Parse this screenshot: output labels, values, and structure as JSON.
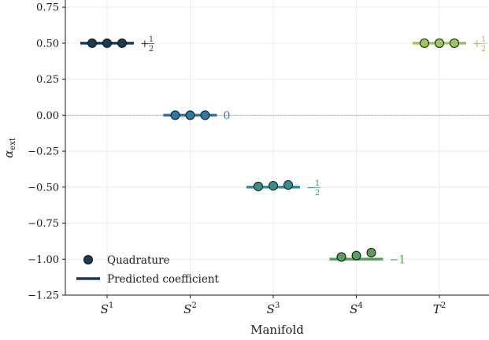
{
  "chart_data": {
    "type": "scatter",
    "xlabel": "Manifold",
    "ylabel": "α",
    "ylabel_sub": "ext",
    "ylim": [
      -1.25,
      0.8
    ],
    "yticks": [
      0.75,
      0.5,
      0.25,
      0.0,
      -0.25,
      -0.5,
      -0.75,
      -1.0,
      -1.25
    ],
    "ytick_labels": [
      "0.75",
      "0.50",
      "0.25",
      "0.00",
      "−0.25",
      "−0.50",
      "−0.75",
      "−1.00",
      "−1.25"
    ],
    "grid": true,
    "reference_line_y": 0.0,
    "categories": [
      {
        "base": "S",
        "sup": "1"
      },
      {
        "base": "S",
        "sup": "2"
      },
      {
        "base": "S",
        "sup": "3"
      },
      {
        "base": "S",
        "sup": "4"
      },
      {
        "base": "T",
        "sup": "2"
      }
    ],
    "series": [
      {
        "name": "Quadrature",
        "kind": "points",
        "groups": [
          {
            "category_index": 0,
            "offsets": [
              -0.18,
              0.0,
              0.18
            ],
            "values": [
              0.5,
              0.5,
              0.5
            ]
          },
          {
            "category_index": 1,
            "offsets": [
              -0.18,
              0.0,
              0.18
            ],
            "values": [
              0.0,
              0.0,
              0.0
            ]
          },
          {
            "category_index": 2,
            "offsets": [
              -0.18,
              0.0,
              0.18
            ],
            "values": [
              -0.495,
              -0.49,
              -0.485
            ]
          },
          {
            "category_index": 3,
            "offsets": [
              -0.18,
              0.0,
              0.18
            ],
            "values": [
              -0.985,
              -0.975,
              -0.955
            ]
          },
          {
            "category_index": 4,
            "offsets": [
              -0.18,
              0.0,
              0.18
            ],
            "values": [
              0.5,
              0.5,
              0.5
            ]
          }
        ]
      },
      {
        "name": "Predicted coefficient",
        "kind": "segments",
        "values": [
          0.5,
          0.0,
          -0.5,
          -1.0,
          0.5
        ]
      }
    ],
    "annotations": [
      {
        "category_index": 0,
        "value": 0.5,
        "sign": "+",
        "num": "1",
        "den": "2"
      },
      {
        "category_index": 1,
        "value": 0.0,
        "text": "0"
      },
      {
        "category_index": 2,
        "value": -0.5,
        "sign": "−",
        "num": "1",
        "den": "2"
      },
      {
        "category_index": 3,
        "value": -1.0,
        "text": "−1"
      },
      {
        "category_index": 4,
        "value": 0.5,
        "sign": "+",
        "num": "1",
        "den": "2"
      }
    ],
    "colors": [
      "#1d3a52",
      "#2b77a5",
      "#3b8e8e",
      "#5c9c5e",
      "#9bc65c"
    ],
    "legend": {
      "position": "lower-left",
      "entries": [
        {
          "label": "Quadrature",
          "marker": "circle",
          "color": "#1d3a52"
        },
        {
          "label": "Predicted coefficient",
          "marker": "line",
          "color": "#1d3a52"
        }
      ]
    }
  }
}
